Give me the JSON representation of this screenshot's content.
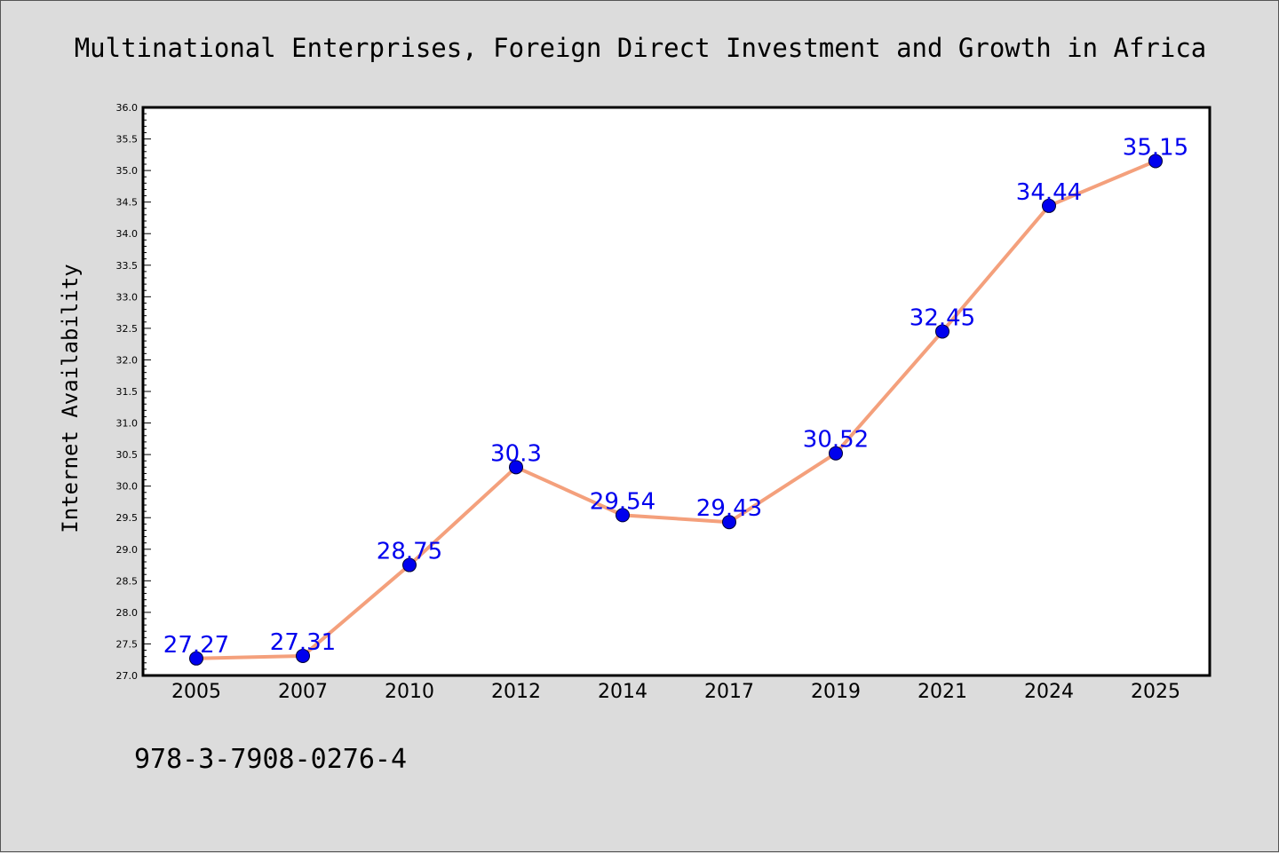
{
  "title": "Multinational Enterprises, Foreign Direct Investment and Growth in Africa",
  "footer_text": "978-3-7908-0276-4",
  "colors": {
    "background": "#dcdcdc",
    "plot_background": "#ffffff",
    "line": "#f4a07c",
    "marker": "#0000ee",
    "label": "#0000ee",
    "text": "#000000"
  },
  "chart_data": {
    "type": "line",
    "title": "Multinational Enterprises, Foreign Direct Investment and Growth in Africa",
    "xlabel": "",
    "ylabel": "Internet Availability",
    "categories": [
      "2005",
      "2007",
      "2010",
      "2012",
      "2014",
      "2017",
      "2019",
      "2021",
      "2024",
      "2025"
    ],
    "series": [
      {
        "values": [
          27.27,
          27.31,
          28.75,
          30.3,
          29.54,
          29.43,
          30.52,
          32.45,
          34.44,
          35.15
        ],
        "labels": [
          "27.27",
          "27.31",
          "28.75",
          "30.3",
          "29.54",
          "29.43",
          "30.52",
          "32.45",
          "34.44",
          "35.15"
        ]
      }
    ],
    "ylim": [
      27.0,
      36.0
    ],
    "yticks": [
      "27.0",
      "27.5",
      "28.0",
      "28.5",
      "29.0",
      "29.5",
      "30.0",
      "30.5",
      "31.0",
      "31.5",
      "32.0",
      "32.5",
      "33.0",
      "33.5",
      "34.0",
      "34.5",
      "35.0",
      "35.5",
      "36.0"
    ],
    "grid": false,
    "legend": "none"
  }
}
